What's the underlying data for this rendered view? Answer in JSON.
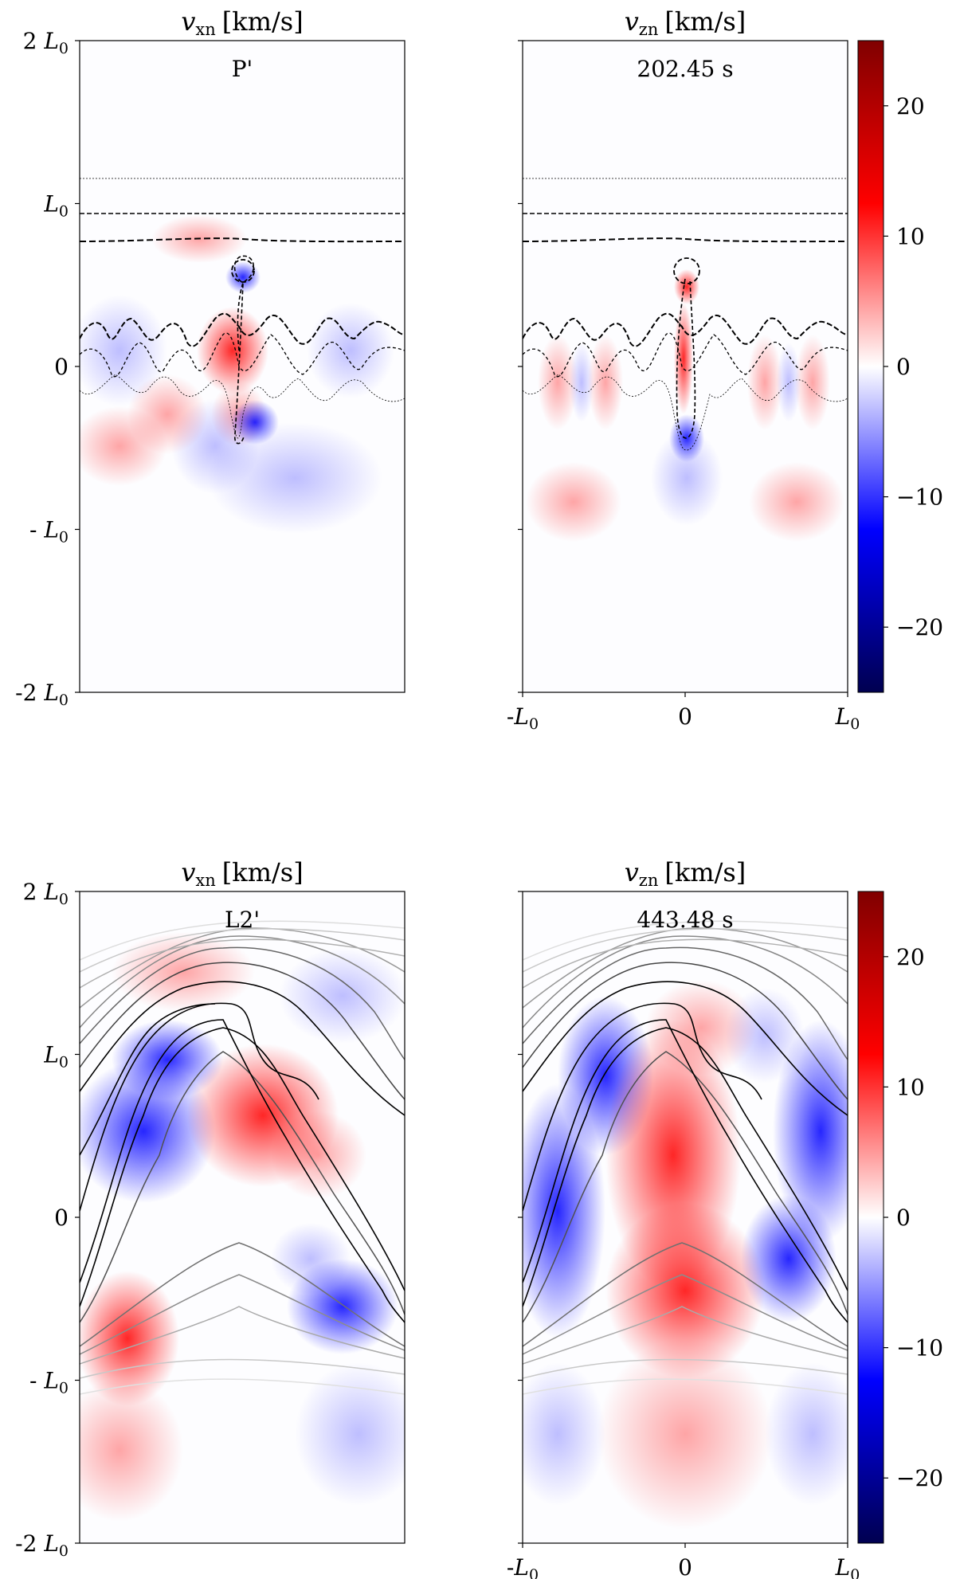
{
  "colors": {
    "negative": "#0000ff",
    "positive": "#ff0000",
    "dark_negative": "#000050",
    "dark_positive": "#800000",
    "neutral": "#ffffff",
    "contour_dark": "#000000",
    "contour_gray": "#8c8c8c"
  },
  "chart_data": [
    {
      "type": "heatmap",
      "row": "top",
      "title_left": {
        "var": "v",
        "sub": "xn",
        "unit": "[km/s]"
      },
      "title_right": {
        "var": "v",
        "sub": "zn",
        "unit": "[km/s]"
      },
      "label": "P'",
      "time": "202.45 s",
      "y_ticks": [
        "2 L0",
        "L0",
        "0",
        "- L0",
        "-2 L0"
      ],
      "x_ticks": [
        "-L0",
        "0",
        "L0"
      ],
      "xlim": [
        -1,
        1
      ],
      "ylim": [
        -2,
        2
      ],
      "colorbar": {
        "range": [
          -25,
          25
        ],
        "ticks": [
          20,
          10,
          0,
          -10,
          -20
        ],
        "tick_labels": [
          "20",
          "10",
          "0",
          "−10",
          "−20"
        ]
      },
      "contour_levels_y": [
        1.17,
        0.95,
        0.78
      ]
    },
    {
      "type": "heatmap",
      "row": "bottom",
      "title_left": {
        "var": "v",
        "sub": "xn",
        "unit": "[km/s]"
      },
      "title_right": {
        "var": "v",
        "sub": "zn",
        "unit": "[km/s]"
      },
      "label": "L2'",
      "time": "443.48 s",
      "y_ticks": [
        "2 L0",
        "L0",
        "0",
        "- L0",
        "-2 L0"
      ],
      "x_ticks": [
        "-L0",
        "0",
        "L0"
      ],
      "xlim": [
        -1,
        1
      ],
      "ylim": [
        -2,
        2
      ],
      "colorbar": {
        "range": [
          -25,
          25
        ],
        "ticks": [
          20,
          10,
          0,
          -10,
          -20
        ],
        "tick_labels": [
          "20",
          "10",
          "0",
          "−10",
          "−20"
        ]
      }
    }
  ]
}
